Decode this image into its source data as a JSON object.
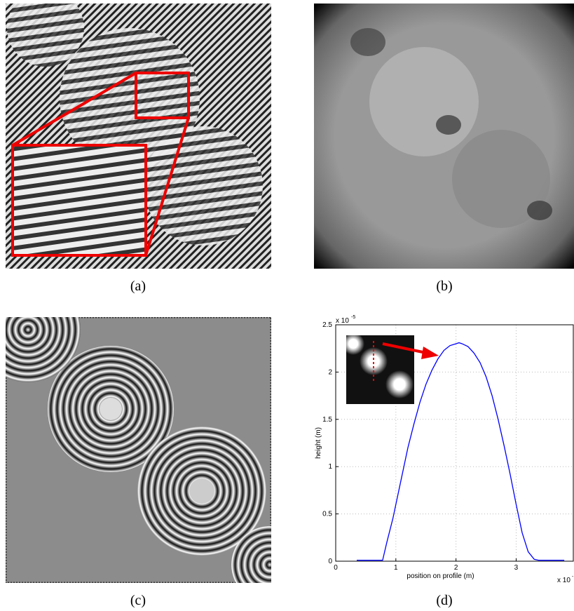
{
  "captions": [
    "(a)",
    "(b)",
    "(c)",
    "(d)"
  ],
  "chart_data": {
    "type": "line",
    "x": [
      0.35,
      0.5,
      0.7,
      0.78,
      0.85,
      0.95,
      1.0,
      1.1,
      1.2,
      1.3,
      1.4,
      1.5,
      1.6,
      1.7,
      1.8,
      1.9,
      2.0,
      2.05,
      2.1,
      2.2,
      2.3,
      2.4,
      2.5,
      2.6,
      2.7,
      2.8,
      2.9,
      3.0,
      3.1,
      3.2,
      3.3,
      3.37,
      3.5,
      3.65,
      3.8
    ],
    "values": [
      0.01,
      0.01,
      0.01,
      0.01,
      0.2,
      0.45,
      0.6,
      0.9,
      1.2,
      1.45,
      1.68,
      1.87,
      2.02,
      2.14,
      2.23,
      2.28,
      2.3,
      2.31,
      2.3,
      2.27,
      2.2,
      2.1,
      1.95,
      1.75,
      1.5,
      1.22,
      0.92,
      0.6,
      0.3,
      0.1,
      0.02,
      0.01,
      0.01,
      0.01,
      0.01
    ],
    "color": "#0000ff",
    "xlim": [
      0,
      3.95
    ],
    "xticks": [
      0,
      1,
      2,
      3
    ],
    "ylim": [
      0,
      2.5
    ],
    "yticks": [
      0,
      0.5,
      1,
      1.5,
      2,
      2.5
    ],
    "grid": true,
    "x_label": "position on profile (m)",
    "y_label": "height (m)",
    "x_multiplier": "x 10",
    "x_exponent": "-",
    "y_multiplier": "x 10",
    "y_exponent": "-5"
  }
}
